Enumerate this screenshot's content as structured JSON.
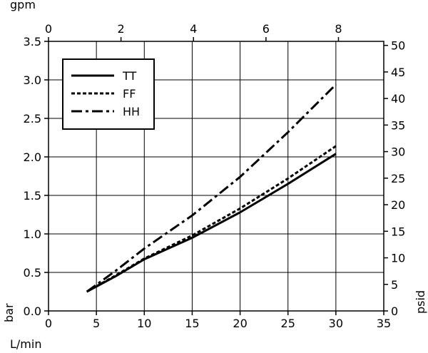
{
  "chart_data": {
    "type": "line",
    "x_axis_bottom": {
      "label": "L/min",
      "ticks": [
        0,
        5,
        10,
        15,
        20,
        25,
        30,
        35
      ],
      "range": [
        0,
        35
      ]
    },
    "x_axis_top": {
      "label": "gpm",
      "ticks": [
        0,
        2,
        4,
        6,
        8
      ],
      "range": [
        0,
        9.25
      ]
    },
    "y_axis_left": {
      "label": "bar",
      "ticks": [
        0.0,
        0.5,
        1.0,
        1.5,
        2.0,
        2.5,
        3.0,
        3.5
      ],
      "tick_labels": [
        "0.0",
        "0.5",
        "1.0",
        "1.5",
        "2.0",
        "2.5",
        "3.0",
        "3.5"
      ],
      "range": [
        0,
        3.5
      ]
    },
    "y_axis_right": {
      "label": "psid",
      "ticks": [
        0,
        5,
        10,
        15,
        20,
        25,
        30,
        35,
        40,
        45,
        50
      ],
      "range": [
        0,
        50.76
      ]
    },
    "grid": true,
    "legend_position": "top-left",
    "series": [
      {
        "name": "TT",
        "style": "solid",
        "points": [
          [
            4,
            0.25
          ],
          [
            7,
            0.45
          ],
          [
            10,
            0.67
          ],
          [
            15,
            0.95
          ],
          [
            20,
            1.28
          ],
          [
            25,
            1.65
          ],
          [
            30,
            2.04
          ]
        ]
      },
      {
        "name": "FF",
        "style": "dotted",
        "points": [
          [
            4,
            0.25
          ],
          [
            7,
            0.46
          ],
          [
            10,
            0.68
          ],
          [
            15,
            0.98
          ],
          [
            20,
            1.33
          ],
          [
            25,
            1.72
          ],
          [
            30,
            2.14
          ]
        ]
      },
      {
        "name": "HH",
        "style": "dash-dot",
        "points": [
          [
            4,
            0.25
          ],
          [
            7,
            0.52
          ],
          [
            10,
            0.81
          ],
          [
            15,
            1.24
          ],
          [
            20,
            1.74
          ],
          [
            25,
            2.32
          ],
          [
            30,
            2.94
          ]
        ]
      }
    ]
  },
  "colors": {
    "line": "#000000",
    "grid": "#000000",
    "background": "#ffffff"
  }
}
